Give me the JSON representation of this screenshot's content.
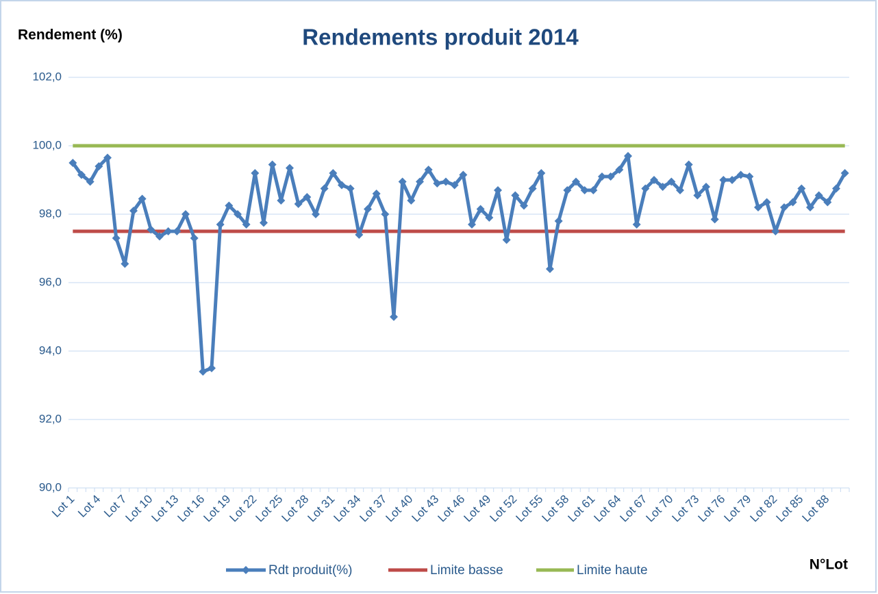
{
  "chart_data": {
    "type": "line",
    "title": "Rendements produit 2014",
    "y_label": "Rendement (%)",
    "x_label": "N°Lot",
    "categories": [
      "Lot 1",
      null,
      null,
      "Lot 4",
      null,
      null,
      "Lot 7",
      null,
      null,
      "Lot 10",
      null,
      null,
      "Lot 13",
      null,
      null,
      "Lot 16",
      null,
      null,
      "Lot 19",
      null,
      null,
      "Lot 22",
      null,
      null,
      "Lot 25",
      null,
      null,
      "Lot 28",
      null,
      null,
      "Lot 31",
      null,
      null,
      "Lot 34",
      null,
      null,
      "Lot 37",
      null,
      null,
      "Lot 40",
      null,
      null,
      "Lot 43",
      null,
      null,
      "Lot 46",
      null,
      null,
      "Lot 49",
      null,
      null,
      "Lot 52",
      null,
      null,
      "Lot 55",
      null,
      null,
      "Lot 58",
      null,
      null,
      "Lot 61",
      null,
      null,
      "Lot 64",
      null,
      null,
      "Lot 67",
      null,
      null,
      "Lot 70",
      null,
      null,
      "Lot 73",
      null,
      null,
      "Lot 76",
      null,
      null,
      "Lot 79",
      null,
      null,
      "Lot 82",
      null,
      null,
      "Lot 85",
      null,
      null,
      "Lot 88",
      null,
      null
    ],
    "series": [
      {
        "name": "Rdt produit(%)",
        "color": "#4a7ebb",
        "marker": "diamond",
        "values": [
          99.5,
          99.15,
          98.95,
          99.4,
          99.65,
          97.3,
          96.55,
          98.1,
          98.45,
          97.55,
          97.35,
          97.5,
          97.5,
          98.0,
          97.3,
          93.4,
          93.5,
          97.7,
          98.25,
          98.0,
          97.7,
          99.2,
          97.75,
          99.45,
          98.4,
          99.35,
          98.3,
          98.5,
          98.0,
          98.75,
          99.2,
          98.85,
          98.75,
          97.4,
          98.15,
          98.6,
          98.0,
          95.0,
          98.95,
          98.4,
          98.95,
          99.3,
          98.9,
          98.95,
          98.85,
          99.15,
          97.7,
          98.15,
          97.9,
          98.7,
          97.25,
          98.55,
          98.25,
          98.75,
          99.2,
          96.4,
          97.8,
          98.7,
          98.95,
          98.7,
          98.7,
          99.1,
          99.1,
          99.3,
          99.7,
          97.7,
          98.75,
          99.0,
          98.8,
          98.95,
          98.7,
          99.45,
          98.55,
          98.8,
          97.85,
          99.0,
          99.0,
          99.15,
          99.1,
          98.2,
          98.35,
          97.5,
          98.2,
          98.35,
          98.75,
          98.2,
          98.55,
          98.35,
          98.75,
          99.2
        ]
      },
      {
        "name": "Limite basse",
        "color": "#be4b48",
        "values": [
          97.5,
          97.5,
          97.5,
          97.5,
          97.5,
          97.5,
          97.5,
          97.5,
          97.5,
          97.5,
          97.5,
          97.5,
          97.5,
          97.5,
          97.5,
          97.5,
          97.5,
          97.5,
          97.5,
          97.5,
          97.5,
          97.5,
          97.5,
          97.5,
          97.5,
          97.5,
          97.5,
          97.5,
          97.5,
          97.5,
          97.5,
          97.5,
          97.5,
          97.5,
          97.5,
          97.5,
          97.5,
          97.5,
          97.5,
          97.5,
          97.5,
          97.5,
          97.5,
          97.5,
          97.5,
          97.5,
          97.5,
          97.5,
          97.5,
          97.5,
          97.5,
          97.5,
          97.5,
          97.5,
          97.5,
          97.5,
          97.5,
          97.5,
          97.5,
          97.5,
          97.5,
          97.5,
          97.5,
          97.5,
          97.5,
          97.5,
          97.5,
          97.5,
          97.5,
          97.5,
          97.5,
          97.5,
          97.5,
          97.5,
          97.5,
          97.5,
          97.5,
          97.5,
          97.5,
          97.5,
          97.5,
          97.5,
          97.5,
          97.5,
          97.5,
          97.5,
          97.5,
          97.5,
          97.5,
          97.5
        ]
      },
      {
        "name": "Limite haute",
        "color": "#98b954",
        "values": [
          100,
          100,
          100,
          100,
          100,
          100,
          100,
          100,
          100,
          100,
          100,
          100,
          100,
          100,
          100,
          100,
          100,
          100,
          100,
          100,
          100,
          100,
          100,
          100,
          100,
          100,
          100,
          100,
          100,
          100,
          100,
          100,
          100,
          100,
          100,
          100,
          100,
          100,
          100,
          100,
          100,
          100,
          100,
          100,
          100,
          100,
          100,
          100,
          100,
          100,
          100,
          100,
          100,
          100,
          100,
          100,
          100,
          100,
          100,
          100,
          100,
          100,
          100,
          100,
          100,
          100,
          100,
          100,
          100,
          100,
          100,
          100,
          100,
          100,
          100,
          100,
          100,
          100,
          100,
          100,
          100,
          100,
          100,
          100,
          100,
          100,
          100,
          100,
          100,
          100
        ]
      }
    ],
    "ylim": [
      90,
      102
    ],
    "yticks": [
      {
        "value": 90,
        "label": "90,0"
      },
      {
        "value": 92,
        "label": "92,0"
      },
      {
        "value": 94,
        "label": "94,0"
      },
      {
        "value": 96,
        "label": "96,0"
      },
      {
        "value": 98,
        "label": "98,0"
      },
      {
        "value": 100,
        "label": "100,0"
      },
      {
        "value": 102,
        "label": "102,0"
      }
    ],
    "grid": true,
    "legend": "bottom"
  }
}
